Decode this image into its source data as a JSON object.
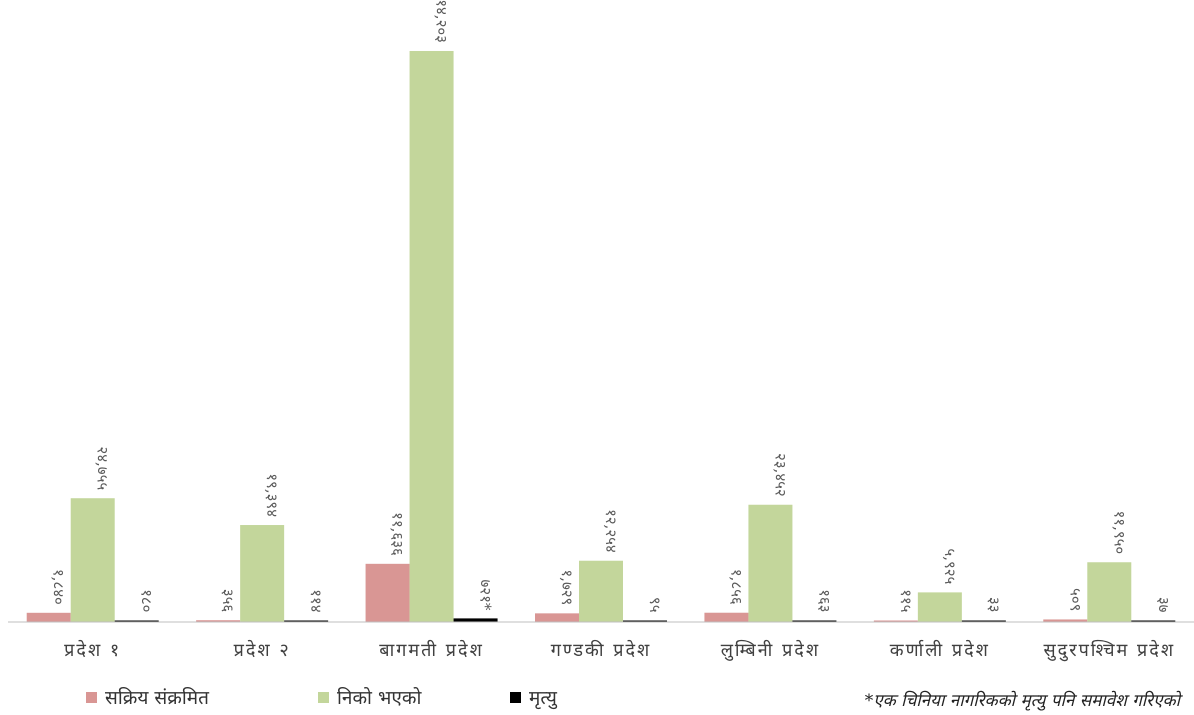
{
  "chart_data": {
    "type": "bar",
    "categories": [
      "प्रदेश १",
      "प्रदेश २",
      "बागमती प्रदेश",
      "गण्डकी प्रदेश",
      "लुम्बिनी प्रदेश",
      "कर्णाली प्रदेश",
      "सुदुरपश्चिम प्रदेश"
    ],
    "series": [
      {
        "name": "सक्रिय संक्रमित",
        "color": "#d99694",
        "values": [
          1840,
          356,
          11636,
          1729,
          1856,
          115,
          509
        ],
        "labels": [
          "१,८४०",
          "३५६",
          "११,६३६",
          "१,७२९",
          "१,८५६",
          "११५",
          "५०९"
        ]
      },
      {
        "name": "निको भएको",
        "color": "#c3d69b",
        "values": [
          24755,
          19394,
          114203,
          12254,
          23452,
          5925,
          11950
        ],
        "labels": [
          "२४,७५५",
          "१९,३९४",
          "११४,२०३",
          "१२,२५४",
          "२३,४५२",
          "५,९२५",
          "११,९५०"
        ]
      },
      {
        "name": "मृत्यु",
        "color": "#000000",
        "values": [
          180,
          114,
          721,
          95,
          163,
          33,
          37
        ],
        "labels": [
          "१८०",
          "११४",
          "७२१*",
          "९५",
          "१६३",
          "३३",
          "३७"
        ]
      }
    ],
    "ylim": [
      0,
      120000
    ],
    "grid": false,
    "legend_position": "bottom-left"
  },
  "footnote": "*एक चिनिया नागरिकको मृत्यु पनि समावेश गरिएको"
}
